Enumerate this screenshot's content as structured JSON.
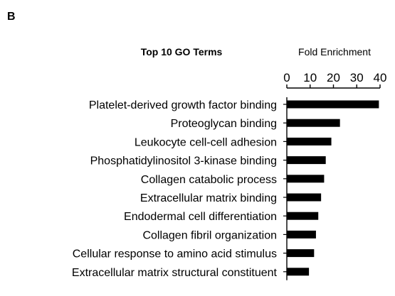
{
  "panel_label": "B",
  "chart_data": {
    "type": "bar",
    "orientation": "horizontal",
    "title": "Top 10 GO Terms",
    "xlabel": "Fold Enrichment",
    "ylabel": "",
    "xlim": [
      0,
      40
    ],
    "xticks": [
      "0",
      "10",
      "20",
      "30",
      "40"
    ],
    "axis_position": "top",
    "grid": false,
    "legend": "none",
    "bar_color": "#000000",
    "categories": [
      "Platelet-derived growth factor binding",
      "Proteoglycan binding",
      "Leukocyte cell-cell adhesion",
      "Phosphatidylinositol 3-kinase binding",
      "Collagen catabolic process",
      "Extracellular matrix binding",
      "Endodermal cell differentiation",
      "Collagen fibril organization",
      "Cellular response to amino acid stimulus",
      "Extracellular matrix structural constituent"
    ],
    "values": [
      39.5,
      22.8,
      19.1,
      16.7,
      16.0,
      14.7,
      13.5,
      12.5,
      11.7,
      9.5
    ]
  }
}
